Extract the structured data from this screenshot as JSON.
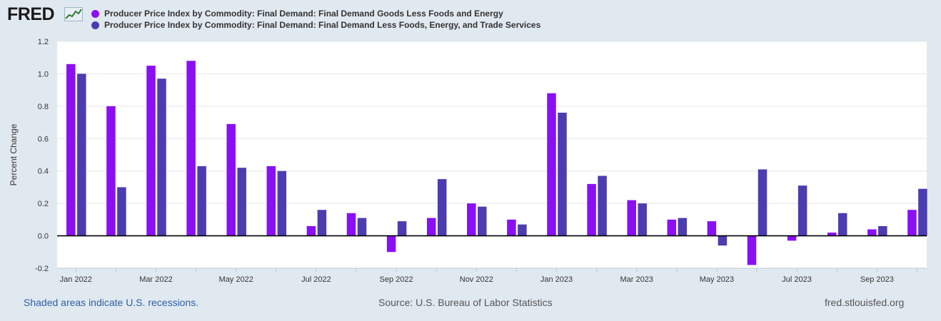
{
  "logo": {
    "text": "FRED"
  },
  "legend": {
    "items": [
      {
        "label": "Producer Price Index by Commodity: Final Demand: Final Demand Goods Less Foods and Energy",
        "color": "#8a0ff5"
      },
      {
        "label": "Producer Price Index by Commodity: Final Demand: Final Demand Less Foods, Energy, and Trade Services",
        "color": "#4b3db0"
      }
    ]
  },
  "footer": {
    "recession_note": "Shaded areas indicate U.S. recessions.",
    "source": "Source: U.S. Bureau of Labor Statistics",
    "site": "fred.stlouisfed.org"
  },
  "chart_data": {
    "type": "bar",
    "title": "",
    "xlabel": "",
    "ylabel": "Percent Change",
    "ylim": [
      -0.2,
      1.2
    ],
    "yticks": [
      -0.2,
      0.0,
      0.2,
      0.4,
      0.6,
      0.8,
      1.0,
      1.2
    ],
    "ytick_labels": [
      "-0.2",
      "0.0",
      "0.2",
      "0.4",
      "0.6",
      "0.8",
      "1.0",
      "1.2"
    ],
    "grid": true,
    "categories": [
      "2022-01",
      "2022-02",
      "2022-03",
      "2022-04",
      "2022-05",
      "2022-06",
      "2022-07",
      "2022-08",
      "2022-09",
      "2022-10",
      "2022-11",
      "2022-12",
      "2023-01",
      "2023-02",
      "2023-03",
      "2023-04",
      "2023-05",
      "2023-06",
      "2023-07",
      "2023-08",
      "2023-09",
      "2023-10"
    ],
    "xtick_labels": [
      {
        "index": 0,
        "label": "Jan 2022"
      },
      {
        "index": 2,
        "label": "Mar 2022"
      },
      {
        "index": 4,
        "label": "May 2022"
      },
      {
        "index": 6,
        "label": "Jul 2022"
      },
      {
        "index": 8,
        "label": "Sep 2022"
      },
      {
        "index": 10,
        "label": "Nov 2022"
      },
      {
        "index": 12,
        "label": "Jan 2023"
      },
      {
        "index": 14,
        "label": "Mar 2023"
      },
      {
        "index": 16,
        "label": "May 2023"
      },
      {
        "index": 18,
        "label": "Jul 2023"
      },
      {
        "index": 20,
        "label": "Sep 2023"
      }
    ],
    "series": [
      {
        "name": "Producer Price Index by Commodity: Final Demand: Final Demand Goods Less Foods and Energy",
        "color": "#8a0ff5",
        "values": [
          1.06,
          0.8,
          1.05,
          1.08,
          0.69,
          0.43,
          0.06,
          0.14,
          -0.1,
          0.11,
          0.2,
          0.1,
          0.88,
          0.32,
          0.22,
          0.1,
          0.09,
          -0.18,
          -0.03,
          0.02,
          0.04,
          0.16
        ]
      },
      {
        "name": "Producer Price Index by Commodity: Final Demand: Final Demand Less Foods, Energy, and Trade Services",
        "color": "#4b3db0",
        "values": [
          1.0,
          0.3,
          0.97,
          0.43,
          0.42,
          0.4,
          0.16,
          0.11,
          0.09,
          0.35,
          0.18,
          0.07,
          0.76,
          0.37,
          0.2,
          0.11,
          -0.06,
          0.41,
          0.31,
          0.14,
          0.06,
          0.29
        ]
      }
    ]
  }
}
